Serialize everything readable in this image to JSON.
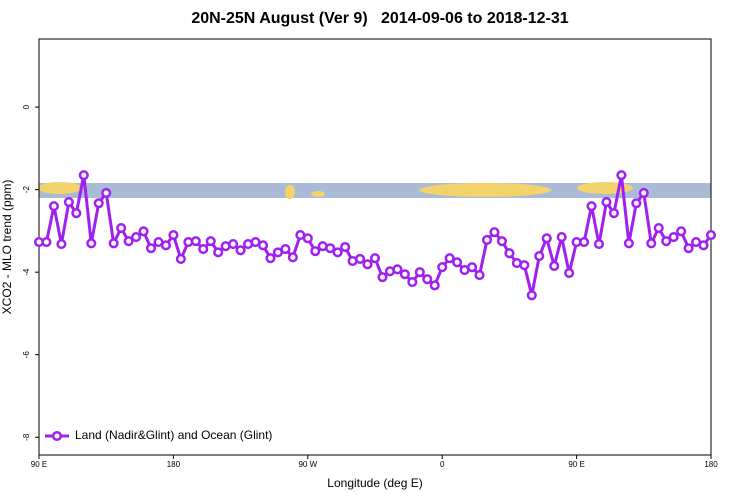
{
  "chart_data": {
    "type": "line",
    "title": "20N-25N August (Ver 9)   2014-09-06 to 2018-12-31",
    "x_label": "Longitude (deg E)",
    "y_label": "XCO2 - MLO trend (ppm)",
    "xlim": [
      90,
      540
    ],
    "ylim": [
      -8.43,
      1.65
    ],
    "xticks": [
      {
        "value": 90,
        "label": "90 E"
      },
      {
        "value": 180,
        "label": "180"
      },
      {
        "value": 270,
        "label": "90 W"
      },
      {
        "value": 360,
        "label": "0"
      },
      {
        "value": 450,
        "label": "90 E"
      },
      {
        "value": 540,
        "label": "180"
      }
    ],
    "yticks": [
      0,
      -2,
      -4,
      -6,
      -8
    ],
    "legend": "bottom-left",
    "x": [
      90,
      95,
      100,
      105,
      110,
      115,
      120,
      125,
      130,
      135,
      140,
      145,
      150,
      155,
      160,
      165,
      170,
      175,
      180,
      185,
      190,
      195,
      200,
      205,
      210,
      215,
      220,
      225,
      230,
      235,
      240,
      245,
      250,
      255,
      260,
      265,
      270,
      275,
      280,
      285,
      290,
      295,
      300,
      305,
      310,
      315,
      320,
      325,
      330,
      335,
      340,
      345,
      350,
      355,
      360,
      365,
      370,
      375,
      380,
      385,
      390,
      395,
      400,
      405,
      410,
      415,
      420,
      425,
      430,
      435,
      440,
      445,
      450,
      455,
      460,
      465,
      470,
      475,
      480,
      485,
      490,
      495,
      500,
      505,
      510,
      515,
      520,
      525,
      530,
      535,
      540
    ],
    "series": [
      {
        "name": "Land (Nadir&Glint) and Ocean (Glint)",
        "color": "#a020f0",
        "values": [
          -3.27,
          -3.27,
          -2.4,
          -3.32,
          -2.3,
          -2.57,
          -1.65,
          -3.3,
          -2.33,
          -2.08,
          -3.3,
          -2.93,
          -3.25,
          -3.15,
          -3.01,
          -3.42,
          -3.27,
          -3.35,
          -3.1,
          -3.68,
          -3.27,
          -3.25,
          -3.44,
          -3.25,
          -3.52,
          -3.37,
          -3.32,
          -3.47,
          -3.32,
          -3.27,
          -3.35,
          -3.66,
          -3.52,
          -3.44,
          -3.64,
          -3.1,
          -3.18,
          -3.49,
          -3.37,
          -3.42,
          -3.52,
          -3.39,
          -3.73,
          -3.68,
          -3.81,
          -3.66,
          -4.12,
          -3.98,
          -3.93,
          -4.05,
          -4.24,
          -4.0,
          -4.17,
          -4.32,
          -3.88,
          -3.66,
          -3.76,
          -3.95,
          -3.88,
          -4.07,
          -3.22,
          -3.03,
          -3.25,
          -3.54,
          -3.78,
          -3.83,
          -4.56,
          -3.61,
          -3.18,
          -3.85,
          -3.15,
          -4.02,
          -3.27,
          -3.27,
          -2.4,
          -3.32,
          -2.3,
          -2.57,
          -1.65,
          -3.3,
          -2.33,
          -2.08,
          -3.3,
          -2.93,
          -3.25,
          -3.15,
          -3.01,
          -3.42,
          -3.27,
          -3.35,
          -3.1
        ]
      }
    ]
  }
}
